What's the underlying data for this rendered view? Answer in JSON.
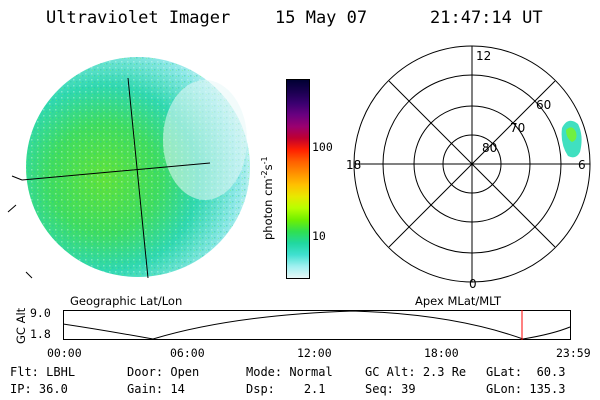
{
  "header": {
    "instrument": "Ultraviolet Imager",
    "date": "15 May 07",
    "time": "21:47:14 UT"
  },
  "colorbar": {
    "label_base": "photon cm",
    "label_exp1": "-2",
    "label_mid": "s",
    "label_exp2": "-1",
    "ticks": [
      "100",
      "10"
    ],
    "scale": "log",
    "colors": [
      "#000033",
      "#1a0050",
      "#3a0070",
      "#6a0080",
      "#9a0070",
      "#c00030",
      "#ff2000",
      "#ff6000",
      "#ff9000",
      "#ffc000",
      "#e8e800",
      "#b8ff00",
      "#70f000",
      "#30e050",
      "#20d8a0",
      "#40e0d0",
      "#a0f0f0",
      "#e8f8f8"
    ]
  },
  "image_panel": {
    "caption": "Geographic Lat/Lon"
  },
  "polar_panel": {
    "caption": "Apex MLat/MLT",
    "mlt_labels": {
      "top": "12",
      "left": "18",
      "right": "6",
      "bottom": "0"
    },
    "lat_labels": [
      "60",
      "70",
      "80"
    ]
  },
  "altitude_plot": {
    "ylabel": "GC Alt",
    "y_ticks": [
      "9.0",
      "1.8"
    ],
    "x_ticks": [
      "00:00",
      "06:00",
      "12:00",
      "18:00",
      "23:59"
    ],
    "marker_color": "#ff0000"
  },
  "status": {
    "flt_label": "Flt:",
    "flt_value": "LBHL",
    "ip_label": "IP:",
    "ip_value": "36.0",
    "door_label": "Door:",
    "door_value": "Open",
    "gain_label": "Gain:",
    "gain_value": "14",
    "mode_label": "Mode:",
    "mode_value": "Normal",
    "dsp_label": "Dsp:",
    "dsp_value": "2.1",
    "gcalt_label": "GC Alt:",
    "gcalt_value": "2.3 Re",
    "seq_label": "Seq:",
    "seq_value": "39",
    "glat_label": "GLat:",
    "glat_value": "60.3",
    "glon_label": "GLon:",
    "glon_value": "135.3"
  }
}
